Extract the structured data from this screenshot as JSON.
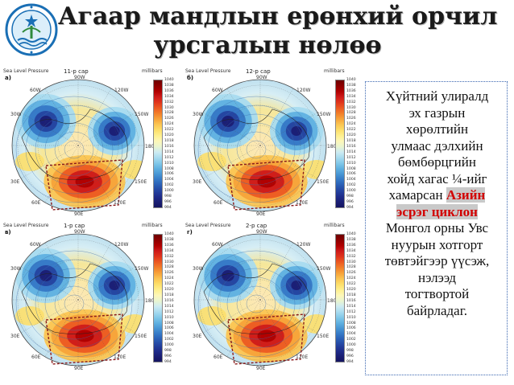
{
  "title": {
    "line1": "Агаар мандлын ерөнхий орчил",
    "line2": "урсгалын нөлөө"
  },
  "colors": {
    "title_text": "#1a1a1a",
    "highlight_text": "#d20000",
    "highlight_bg": "#c9c9c9",
    "box_border": "#3a66b0",
    "logo_blue": "#1a6fb5"
  },
  "panels": [
    {
      "id": "a",
      "letter": "а)",
      "month": "11-р сар",
      "label": "Sea Level Pressure",
      "units": "millibars",
      "lon_top": "90W",
      "lon_upper_left": "60W",
      "lon_upper_right": "120W",
      "lon_left": "30W",
      "lon_right": "150W",
      "lon_mid_right": "180",
      "lon_lower_left": "30E",
      "lon_lower_right": "150E",
      "lon_bottom_left": "60E",
      "lon_bottom_right": "120E",
      "lon_bottom": "90E"
    },
    {
      "id": "b",
      "letter": "б)",
      "month": "12-р сар",
      "label": "Sea Level Pressure",
      "units": "millibars",
      "lon_top": "90W",
      "lon_upper_left": "60W",
      "lon_upper_right": "120W",
      "lon_left": "30W",
      "lon_right": "150W",
      "lon_mid_right": "180",
      "lon_lower_left": "30E",
      "lon_lower_right": "150E",
      "lon_bottom_left": "60E",
      "lon_bottom_right": "120E",
      "lon_bottom": "90E"
    },
    {
      "id": "v",
      "letter": "в)",
      "month": "1-р сар",
      "label": "Sea Level Pressure",
      "units": "millibars",
      "lon_top": "90W",
      "lon_upper_left": "60W",
      "lon_upper_right": "120W",
      "lon_left": "30W",
      "lon_right": "150W",
      "lon_mid_right": "180",
      "lon_lower_left": "30E",
      "lon_lower_right": "150E",
      "lon_bottom_left": "60E",
      "lon_bottom_right": "120E",
      "lon_bottom": "90E"
    },
    {
      "id": "g",
      "letter": "г)",
      "month": "2-р сар",
      "label": "Sea Level Pressure",
      "units": "millibars",
      "lon_top": "90W",
      "lon_upper_left": "60W",
      "lon_upper_right": "120W",
      "lon_left": "30W",
      "lon_right": "150W",
      "lon_mid_right": "180",
      "lon_lower_left": "30E",
      "lon_lower_right": "150E",
      "lon_bottom_left": "60E",
      "lon_bottom_right": "120E",
      "lon_bottom": "90E"
    }
  ],
  "colorbar_ticks": [
    "1040",
    "1038",
    "1036",
    "1034",
    "1032",
    "1030",
    "1028",
    "1026",
    "1024",
    "1022",
    "1020",
    "1018",
    "1016",
    "1014",
    "1012",
    "1010",
    "1008",
    "1006",
    "1004",
    "1002",
    "1000",
    "998",
    "996",
    "994"
  ],
  "colorbar_colors": [
    "#6e0000",
    "#8e0000",
    "#b00000",
    "#cf1a1a",
    "#e0361c",
    "#ec5a22",
    "#f27f2a",
    "#f7a33a",
    "#fbc552",
    "#fddf6a",
    "#fef08e",
    "#fdf7b8",
    "#e9f5d0",
    "#cdebf2",
    "#a8dbef",
    "#82c8e9",
    "#5fb0e0",
    "#4795d4",
    "#3578c6",
    "#2a5db4",
    "#2443a0",
    "#1f2d8c",
    "#1a1e74",
    "#141460"
  ],
  "caption": {
    "line1": "Хүйтний улиралд",
    "line2": "эх газрын",
    "line3": "хөрөлтийн",
    "line4": "улмаас дэлхийн",
    "line5": "бөмбөрцгийн",
    "line6": "хойд хагас ¼-ийг",
    "line7_prefix": "хамарсан",
    "highlight_1": "Азийн",
    "highlight_2": "эсрэг циклон",
    "line9": "Монгол орны Увс",
    "line10": "нуурын хотгорт",
    "line11": "төвтэйгээр үүсэж,",
    "line12": "нэлээд",
    "line13": "тогтвортой",
    "line14": "байрладаг."
  }
}
